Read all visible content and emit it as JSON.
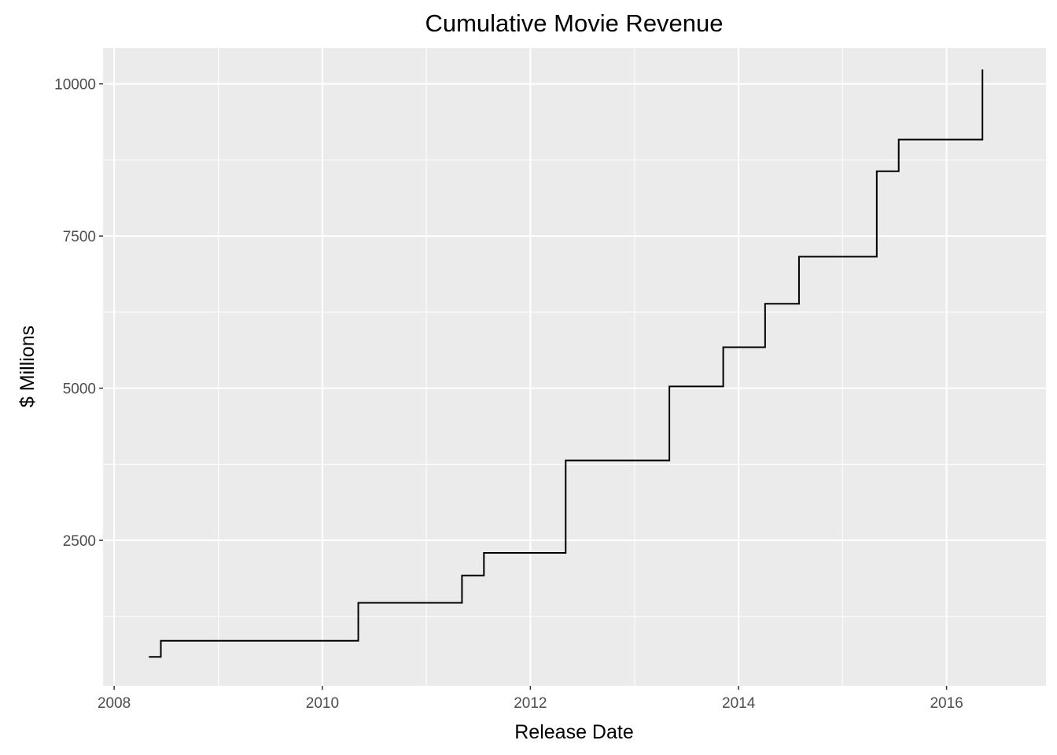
{
  "chart_data": {
    "type": "line",
    "step": "hv",
    "title": "Cumulative Movie Revenue",
    "xlabel": "Release Date",
    "ylabel": "$ Millions",
    "x_is_date": true,
    "xlim": [
      "2007-11-23",
      "2016-12-15"
    ],
    "ylim": [
      110,
      10590
    ],
    "x_ticks": [
      {
        "value": "2008-01-01",
        "label": "2008"
      },
      {
        "value": "2010-01-01",
        "label": "2010"
      },
      {
        "value": "2012-01-01",
        "label": "2012"
      },
      {
        "value": "2014-01-01",
        "label": "2014"
      },
      {
        "value": "2016-01-01",
        "label": "2016"
      }
    ],
    "x_minor_ticks": [
      "2009-01-01",
      "2011-01-01",
      "2013-01-01",
      "2015-01-01"
    ],
    "y_ticks": [
      2500,
      5000,
      7500,
      10000
    ],
    "y_minor_ticks": [
      1250,
      3750,
      6250,
      8750
    ],
    "grid": true,
    "series": [
      {
        "color": "#000000",
        "x": [
          "2008-05-02",
          "2008-06-13",
          "2010-05-07",
          "2011-05-06",
          "2011-07-22",
          "2012-05-04",
          "2013-05-03",
          "2013-11-08",
          "2014-04-04",
          "2014-08-01",
          "2015-05-01",
          "2015-07-17",
          "2016-05-06"
        ],
        "y": [
          585,
          850,
          1474,
          1923,
          2294,
          3813,
          5028,
          5673,
          6387,
          7160,
          8565,
          9084,
          10237
        ]
      }
    ]
  }
}
